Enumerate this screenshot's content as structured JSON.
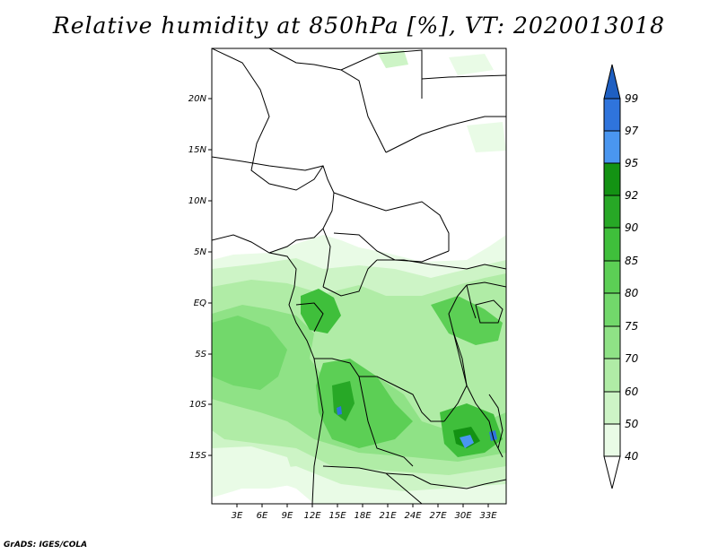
{
  "title": "Relative humidity at 850hPa [%], VT: 2020013018",
  "footer": "GrADS: IGES/COLA",
  "map": {
    "lat_labels": [
      "20N",
      "15N",
      "10N",
      "5N",
      "EQ",
      "5S",
      "10S",
      "15S"
    ],
    "lon_labels": [
      "3E",
      "6E",
      "9E",
      "12E",
      "15E",
      "18E",
      "21E",
      "24E",
      "27E",
      "30E",
      "33E"
    ],
    "colors": {
      "c40": "#e9fbe6",
      "c50": "#cdf4c6",
      "c60": "#b0eca6",
      "c70": "#8fe286",
      "c75": "#72d86b",
      "c80": "#5ccf55",
      "c85": "#3fbf3b",
      "c90": "#27a826",
      "c92": "#139213",
      "c95": "#4a96f0",
      "c97": "#2f74dc",
      "c99": "#1e5fc2",
      "border": "#000000"
    }
  },
  "colorbar": {
    "labels": [
      "99",
      "97",
      "95",
      "92",
      "90",
      "85",
      "80",
      "75",
      "70",
      "60",
      "50",
      "40"
    ],
    "colors": [
      "#1e5fc2",
      "#2f74dc",
      "#4a96f0",
      "#139213",
      "#27a826",
      "#3fbf3b",
      "#5ccf55",
      "#72d86b",
      "#8fe286",
      "#b0eca6",
      "#cdf4c6",
      "#e9fbe6"
    ]
  }
}
